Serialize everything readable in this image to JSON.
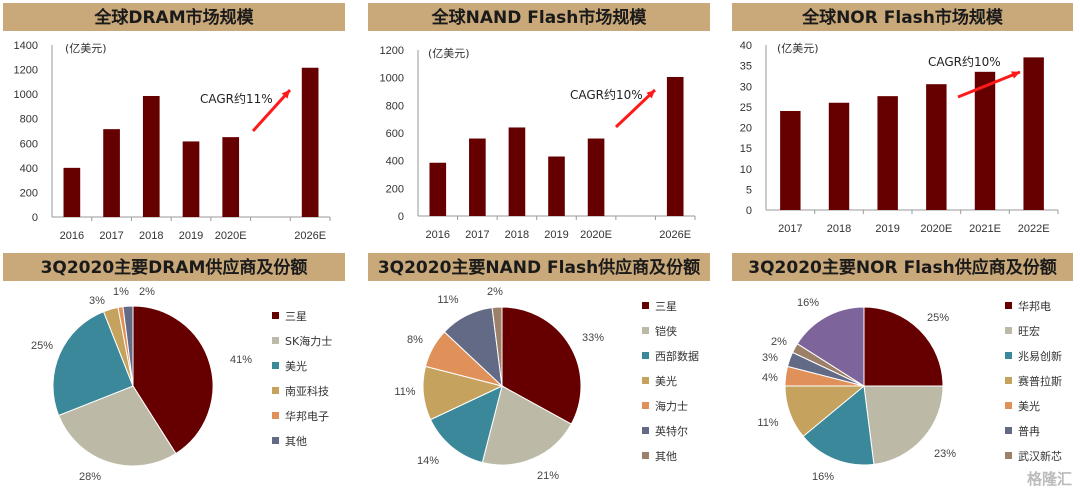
{
  "colors": {
    "header_band": "#c9a87a",
    "bar": "#660000",
    "arrow": "#ff1a1a"
  },
  "watermark": "格隆汇",
  "chart_data": [
    {
      "type": "bar",
      "title": "全球DRAM市场规模",
      "unit": "(亿美元)",
      "annotation": "CAGR约11%",
      "categories": [
        "2016",
        "2017",
        "2018",
        "2019",
        "2020E",
        "",
        "2026E"
      ],
      "values": [
        400,
        715,
        985,
        615,
        650,
        null,
        1215
      ],
      "yticks": [
        0,
        200,
        400,
        600,
        800,
        1000,
        1200,
        1400
      ],
      "ylim": [
        0,
        1400
      ]
    },
    {
      "type": "bar",
      "title": "全球NAND Flash市场规模",
      "unit": "(亿美元)",
      "annotation": "CAGR约10%",
      "categories": [
        "2016",
        "2017",
        "2018",
        "2019",
        "2020E",
        "",
        "2026E"
      ],
      "values": [
        385,
        560,
        640,
        430,
        560,
        null,
        1005
      ],
      "yticks": [
        0,
        200,
        400,
        600,
        800,
        1000,
        1200
      ],
      "ylim": [
        0,
        1200
      ]
    },
    {
      "type": "bar",
      "title": "全球NOR Flash市场规模",
      "unit": "(亿美元)",
      "annotation": "CAGR约10%",
      "categories": [
        "2017",
        "2018",
        "2019",
        "2020E",
        "2021E",
        "2022E"
      ],
      "values": [
        24,
        26,
        27.6,
        30.5,
        33.5,
        37
      ],
      "yticks": [
        0,
        5,
        10,
        15,
        20,
        25,
        30,
        35,
        40
      ],
      "ylim": [
        0,
        40
      ]
    },
    {
      "type": "pie",
      "title": "3Q2020主要DRAM供应商及份额",
      "labels": [
        "三星",
        "SK海力士",
        "美光",
        "南亚科技",
        "华邦电子",
        "其他"
      ],
      "values": [
        41,
        28,
        25,
        3,
        1,
        2
      ],
      "colors": [
        "#660000",
        "#bcbaa7",
        "#3a8899",
        "#c5a35f",
        "#e0915a",
        "#626a86"
      ]
    },
    {
      "type": "pie",
      "title": "3Q2020主要NAND Flash供应商及份额",
      "labels": [
        "三星",
        "铠侠",
        "西部数据",
        "美光",
        "海力士",
        "英特尔",
        "其他"
      ],
      "values": [
        33,
        21,
        14,
        11,
        8,
        11,
        2
      ],
      "colors": [
        "#660000",
        "#bcbaa7",
        "#3a8899",
        "#c5a35f",
        "#e0915a",
        "#626a86",
        "#9c8068"
      ]
    },
    {
      "type": "pie",
      "title": "3Q2020主要NOR Flash供应商及份额",
      "labels": [
        "华邦电",
        "旺宏",
        "兆易创新",
        "赛普拉斯",
        "美光",
        "普冉",
        "武汉新芯"
      ],
      "values": [
        25,
        23,
        16,
        11,
        4,
        3,
        2
      ],
      "extra_slice": {
        "value": 16,
        "color": "#7d649b"
      },
      "colors": [
        "#660000",
        "#bcbaa7",
        "#3a8899",
        "#c5a35f",
        "#e0915a",
        "#626a86",
        "#9c8068"
      ]
    }
  ]
}
